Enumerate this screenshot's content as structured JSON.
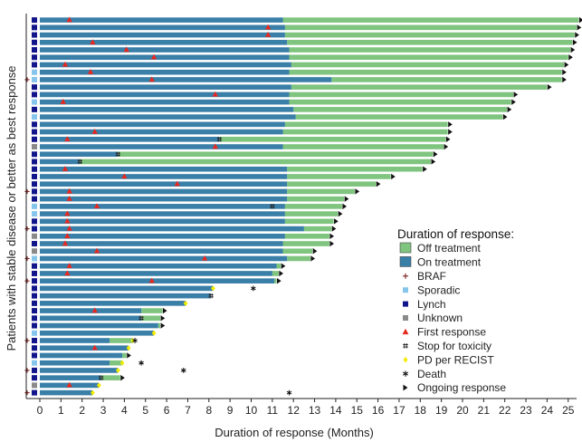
{
  "chart_data": {
    "type": "bar",
    "orientation": "horizontal",
    "xlabel": "Duration of response (Months)",
    "ylabel": "Patients with stable disease or better as best response",
    "xlim": [
      0,
      25.8
    ],
    "xticks": [
      0,
      1,
      2,
      3,
      4,
      5,
      6,
      7,
      8,
      9,
      10,
      11,
      12,
      13,
      14,
      15,
      16,
      17,
      18,
      19,
      20,
      21,
      22,
      23,
      24,
      25
    ],
    "grid": false,
    "legend_position": "bottom-right",
    "legend": {
      "title": "Duration of response:",
      "items": [
        {
          "key": "off",
          "label": "Off treatment",
          "symbol": "square",
          "color": "#7fc47f"
        },
        {
          "key": "on",
          "label": "On treatment",
          "symbol": "square",
          "color": "#3a7fa8"
        },
        {
          "key": "braf",
          "label": "BRAF",
          "symbol": "plus",
          "color": "#7a1f1f"
        },
        {
          "key": "sporadic",
          "label": "Sporadic",
          "symbol": "square",
          "color": "#87c6ec"
        },
        {
          "key": "lynch",
          "label": "Lynch",
          "symbol": "square",
          "color": "#11148a"
        },
        {
          "key": "unknown",
          "label": "Unknown",
          "symbol": "square",
          "color": "#8a8a8a"
        },
        {
          "key": "first",
          "label": "First response",
          "symbol": "triangle",
          "color": "#e8281e"
        },
        {
          "key": "tox",
          "label": "Stop for toxicity",
          "symbol": "hash",
          "color": "#222222"
        },
        {
          "key": "pd",
          "label": "PD per RECIST",
          "symbol": "diamond",
          "color": "#f2ec00"
        },
        {
          "key": "death",
          "label": "Death",
          "symbol": "asterisk",
          "color": "#111111"
        },
        {
          "key": "ongoing",
          "label": "Ongoing response",
          "symbol": "arrow",
          "color": "#111111"
        }
      ]
    },
    "patients": [
      {
        "on": 11.5,
        "end": 25.5,
        "first": 1.4,
        "group": "lynch",
        "braf": false,
        "ongoing": true
      },
      {
        "on": 11.6,
        "end": 25.4,
        "first": 10.8,
        "group": "lynch",
        "braf": false,
        "ongoing": true
      },
      {
        "on": 11.6,
        "end": 25.3,
        "first": 10.8,
        "group": "lynch",
        "braf": false,
        "ongoing": true
      },
      {
        "on": 11.7,
        "end": 25.2,
        "first": 2.5,
        "group": "lynch",
        "braf": false,
        "ongoing": true
      },
      {
        "on": 11.8,
        "end": 25.1,
        "first": 4.1,
        "group": "lynch",
        "braf": false,
        "ongoing": true
      },
      {
        "on": 11.8,
        "end": 25.0,
        "first": 5.4,
        "group": "lynch",
        "braf": false,
        "ongoing": true
      },
      {
        "on": 11.9,
        "end": 24.8,
        "first": 1.2,
        "group": "lynch",
        "braf": false,
        "ongoing": true
      },
      {
        "on": 11.8,
        "end": 24.7,
        "first": 2.4,
        "group": "sporadic",
        "braf": false,
        "ongoing": true
      },
      {
        "on": 13.8,
        "end": 24.7,
        "first": 5.3,
        "group": "sporadic",
        "braf": true,
        "ongoing": true
      },
      {
        "on": 11.9,
        "end": 24.0,
        "first": null,
        "group": "lynch",
        "braf": false,
        "ongoing": true
      },
      {
        "on": 11.8,
        "end": 22.4,
        "first": 8.3,
        "group": "lynch",
        "braf": false,
        "ongoing": true
      },
      {
        "on": 11.8,
        "end": 22.3,
        "first": 1.1,
        "group": "sporadic",
        "braf": false,
        "ongoing": true
      },
      {
        "on": 12.0,
        "end": 22.1,
        "first": null,
        "group": "lynch",
        "braf": false,
        "ongoing": true
      },
      {
        "on": 12.1,
        "end": 21.9,
        "first": null,
        "group": "sporadic",
        "braf": false,
        "ongoing": true
      },
      {
        "on": 11.6,
        "end": 19.3,
        "first": null,
        "group": "lynch",
        "braf": false,
        "ongoing": true
      },
      {
        "on": 11.5,
        "end": 19.3,
        "first": 2.6,
        "group": "lynch",
        "braf": false,
        "ongoing": true
      },
      {
        "on": 8.5,
        "end": 19.2,
        "first": 1.3,
        "group": "lynch",
        "braf": false,
        "ongoing": true,
        "tox": 8.5
      },
      {
        "on": 11.5,
        "end": 19.1,
        "first": 8.3,
        "group": "unknown",
        "braf": false,
        "ongoing": true
      },
      {
        "on": 3.7,
        "end": 18.6,
        "first": null,
        "group": "lynch",
        "braf": false,
        "ongoing": true,
        "tox": 3.7
      },
      {
        "on": 1.9,
        "end": 18.5,
        "first": null,
        "group": "lynch",
        "braf": false,
        "ongoing": true,
        "tox": 1.9
      },
      {
        "on": 11.7,
        "end": 18.1,
        "first": 1.2,
        "group": "lynch",
        "braf": false,
        "ongoing": true
      },
      {
        "on": 11.7,
        "end": 16.6,
        "first": 4.0,
        "group": "lynch",
        "braf": false,
        "ongoing": true
      },
      {
        "on": 11.7,
        "end": 15.9,
        "first": 6.5,
        "group": "lynch",
        "braf": false,
        "ongoing": true
      },
      {
        "on": 11.7,
        "end": 14.9,
        "first": 1.4,
        "group": "lynch",
        "braf": true,
        "ongoing": true
      },
      {
        "on": 11.7,
        "end": 14.4,
        "first": 1.4,
        "group": "lynch",
        "braf": false,
        "ongoing": true
      },
      {
        "on": 11.6,
        "end": 14.3,
        "first": 2.7,
        "group": "sporadic",
        "braf": false,
        "ongoing": true,
        "tox": 11.0
      },
      {
        "on": 11.6,
        "end": 14.1,
        "first": 1.3,
        "group": "sporadic",
        "braf": false,
        "ongoing": true
      },
      {
        "on": 11.6,
        "end": 13.9,
        "first": 1.3,
        "group": "lynch",
        "braf": false,
        "ongoing": true
      },
      {
        "on": 12.5,
        "end": 13.8,
        "first": 1.4,
        "group": "lynch",
        "braf": true,
        "ongoing": true
      },
      {
        "on": 11.6,
        "end": 13.7,
        "first": 1.3,
        "group": "unknown",
        "braf": false,
        "ongoing": true
      },
      {
        "on": 11.5,
        "end": 13.7,
        "first": 1.2,
        "group": "lynch",
        "braf": false,
        "ongoing": true
      },
      {
        "on": 11.5,
        "end": 12.9,
        "first": 2.7,
        "group": "unknown",
        "braf": false,
        "ongoing": true
      },
      {
        "on": 11.7,
        "end": 12.8,
        "first": 7.8,
        "group": "sporadic",
        "braf": true,
        "ongoing": true
      },
      {
        "on": 11.2,
        "end": 11.4,
        "first": 1.4,
        "group": "lynch",
        "braf": false,
        "ongoing": true
      },
      {
        "on": 11.0,
        "end": 11.3,
        "first": 1.3,
        "group": "lynch",
        "braf": false,
        "ongoing": true
      },
      {
        "on": 11.1,
        "end": 11.2,
        "first": 5.3,
        "group": "lynch",
        "braf": true,
        "ongoing": true
      },
      {
        "on": 8.2,
        "end": 8.2,
        "first": null,
        "group": "lynch",
        "braf": false,
        "ongoing": false,
        "pd": 8.2,
        "death": 10.1
      },
      {
        "on": 8.1,
        "end": 8.1,
        "first": null,
        "group": "lynch",
        "braf": false,
        "ongoing": false,
        "tox": 8.1
      },
      {
        "on": 6.9,
        "end": 6.9,
        "first": null,
        "group": "lynch",
        "braf": false,
        "ongoing": false,
        "pd": 6.9
      },
      {
        "on": 4.8,
        "end": 5.8,
        "first": 2.6,
        "group": "lynch",
        "braf": false,
        "ongoing": true
      },
      {
        "on": 4.8,
        "end": 5.7,
        "first": null,
        "group": "lynch",
        "braf": false,
        "ongoing": true,
        "tox": 4.8
      },
      {
        "on": 5.6,
        "end": 5.7,
        "first": null,
        "group": "lynch",
        "braf": false,
        "ongoing": true
      },
      {
        "on": 5.4,
        "end": 5.4,
        "first": null,
        "group": "sporadic",
        "braf": false,
        "ongoing": false,
        "pd": 5.4
      },
      {
        "on": 3.3,
        "end": 4.4,
        "first": null,
        "group": "lynch",
        "braf": true,
        "ongoing": false,
        "pd": 4.4,
        "death": 4.5
      },
      {
        "on": 4.2,
        "end": 4.2,
        "first": 2.6,
        "group": "lynch",
        "braf": false,
        "ongoing": false,
        "pd": 4.2
      },
      {
        "on": 3.9,
        "end": 4.1,
        "first": null,
        "group": "lynch",
        "braf": false,
        "ongoing": true
      },
      {
        "on": 3.3,
        "end": 3.9,
        "first": null,
        "group": "sporadic",
        "braf": false,
        "ongoing": false,
        "pd": 3.9,
        "death": 4.8
      },
      {
        "on": 3.7,
        "end": 3.7,
        "first": null,
        "group": "lynch",
        "braf": true,
        "ongoing": false,
        "pd": 3.7,
        "death": 6.8
      },
      {
        "on": 2.9,
        "end": 3.8,
        "first": null,
        "group": "lynch",
        "braf": false,
        "ongoing": true,
        "tox": 2.9
      },
      {
        "on": 2.8,
        "end": 2.8,
        "first": 1.4,
        "group": "unknown",
        "braf": false,
        "ongoing": false,
        "pd": 2.8
      },
      {
        "on": 2.5,
        "end": 2.5,
        "first": null,
        "group": "lynch",
        "braf": true,
        "ongoing": false,
        "pd": 2.5,
        "death": 11.8
      }
    ]
  }
}
